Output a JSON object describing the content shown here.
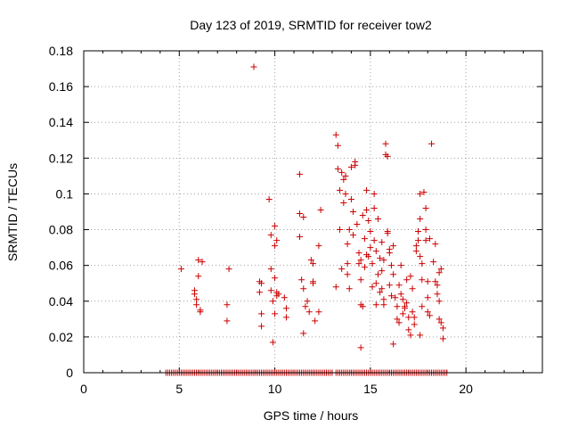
{
  "chart_data": {
    "type": "scatter",
    "title": "Day 123 of 2019, SRMTID for receiver tow2",
    "xlabel": "GPS time / hours",
    "ylabel": "SRMTID / TECUs",
    "xlim": [
      0,
      24
    ],
    "ylim": [
      0,
      0.18
    ],
    "x_ticks": [
      0,
      5,
      10,
      15,
      20
    ],
    "x_tick_labels": [
      "0",
      "5",
      "10",
      "15",
      "20"
    ],
    "y_ticks": [
      0,
      0.02,
      0.04,
      0.06,
      0.08,
      0.1,
      0.12,
      0.14,
      0.16,
      0.18
    ],
    "y_tick_labels": [
      "0",
      "0.02",
      "0.04",
      "0.06",
      "0.08",
      "0.1",
      "0.12",
      "0.14",
      "0.16",
      "0.18"
    ],
    "grid": true,
    "marker": "+",
    "marker_color": "#cc0000",
    "zero_series": {
      "y": 0,
      "x_ranges": [
        [
          4.3,
          9.9
        ],
        [
          10.0,
          13.0
        ],
        [
          13.2,
          19.0
        ]
      ],
      "step": 0.1
    },
    "series": [
      {
        "name": "SRMTID",
        "points": [
          [
            5.1,
            0.058
          ],
          [
            5.8,
            0.046
          ],
          [
            5.8,
            0.044
          ],
          [
            5.9,
            0.038
          ],
          [
            5.9,
            0.041
          ],
          [
            6.0,
            0.063
          ],
          [
            6.0,
            0.054
          ],
          [
            6.1,
            0.035
          ],
          [
            6.1,
            0.034
          ],
          [
            6.2,
            0.062
          ],
          [
            7.5,
            0.038
          ],
          [
            7.6,
            0.058
          ],
          [
            7.5,
            0.029
          ],
          [
            8.9,
            0.171
          ],
          [
            9.2,
            0.051
          ],
          [
            9.2,
            0.045
          ],
          [
            9.3,
            0.033
          ],
          [
            9.3,
            0.026
          ],
          [
            9.3,
            0.05
          ],
          [
            9.7,
            0.097
          ],
          [
            9.8,
            0.077
          ],
          [
            9.8,
            0.058
          ],
          [
            9.8,
            0.046
          ],
          [
            9.9,
            0.04
          ],
          [
            10.0,
            0.082
          ],
          [
            10.0,
            0.071
          ],
          [
            10.0,
            0.053
          ],
          [
            10.1,
            0.045
          ],
          [
            10.1,
            0.043
          ],
          [
            10.2,
            0.044
          ],
          [
            10.1,
            0.074
          ],
          [
            9.9,
            0.017
          ],
          [
            10.0,
            0.033
          ],
          [
            10.5,
            0.042
          ],
          [
            10.6,
            0.036
          ],
          [
            10.6,
            0.031
          ],
          [
            11.3,
            0.111
          ],
          [
            11.3,
            0.089
          ],
          [
            11.3,
            0.076
          ],
          [
            11.4,
            0.052
          ],
          [
            11.5,
            0.087
          ],
          [
            11.5,
            0.047
          ],
          [
            11.6,
            0.037
          ],
          [
            11.5,
            0.022
          ],
          [
            11.7,
            0.04
          ],
          [
            11.8,
            0.034
          ],
          [
            11.9,
            0.063
          ],
          [
            12.0,
            0.061
          ],
          [
            12.0,
            0.05
          ],
          [
            12.0,
            0.051
          ],
          [
            12.1,
            0.029
          ],
          [
            12.3,
            0.071
          ],
          [
            12.4,
            0.091
          ],
          [
            12.3,
            0.034
          ],
          [
            13.2,
            0.133
          ],
          [
            13.3,
            0.127
          ],
          [
            13.3,
            0.114
          ],
          [
            13.4,
            0.102
          ],
          [
            13.4,
            0.08
          ],
          [
            13.5,
            0.058
          ],
          [
            13.2,
            0.048
          ],
          [
            13.5,
            0.112
          ],
          [
            13.6,
            0.095
          ],
          [
            13.6,
            0.108
          ],
          [
            13.7,
            0.11
          ],
          [
            13.7,
            0.1
          ],
          [
            13.8,
            0.072
          ],
          [
            13.8,
            0.055
          ],
          [
            13.8,
            0.061
          ],
          [
            13.9,
            0.047
          ],
          [
            13.9,
            0.08
          ],
          [
            14.0,
            0.115
          ],
          [
            14.0,
            0.097
          ],
          [
            14.1,
            0.09
          ],
          [
            14.1,
            0.077
          ],
          [
            14.2,
            0.116
          ],
          [
            14.2,
            0.118
          ],
          [
            14.3,
            0.083
          ],
          [
            14.4,
            0.067
          ],
          [
            14.4,
            0.061
          ],
          [
            14.5,
            0.063
          ],
          [
            14.5,
            0.052
          ],
          [
            14.5,
            0.038
          ],
          [
            14.6,
            0.037
          ],
          [
            14.5,
            0.014
          ],
          [
            14.6,
            0.088
          ],
          [
            14.7,
            0.075
          ],
          [
            14.7,
            0.059
          ],
          [
            14.8,
            0.102
          ],
          [
            14.8,
            0.091
          ],
          [
            14.8,
            0.066
          ],
          [
            14.9,
            0.085
          ],
          [
            14.9,
            0.065
          ],
          [
            15.0,
            0.079
          ],
          [
            15.0,
            0.07
          ],
          [
            15.1,
            0.061
          ],
          [
            15.1,
            0.048
          ],
          [
            15.2,
            0.1
          ],
          [
            15.2,
            0.092
          ],
          [
            15.2,
            0.074
          ],
          [
            15.3,
            0.068
          ],
          [
            15.3,
            0.05
          ],
          [
            15.3,
            0.038
          ],
          [
            15.4,
            0.086
          ],
          [
            15.5,
            0.064
          ],
          [
            15.5,
            0.045
          ],
          [
            15.6,
            0.057
          ],
          [
            15.6,
            0.047
          ],
          [
            15.7,
            0.041
          ],
          [
            15.7,
            0.038
          ],
          [
            15.6,
            0.073
          ],
          [
            15.7,
            0.063
          ],
          [
            15.8,
            0.128
          ],
          [
            15.8,
            0.122
          ],
          [
            15.9,
            0.121
          ],
          [
            15.9,
            0.079
          ],
          [
            15.9,
            0.078
          ],
          [
            16.0,
            0.069
          ],
          [
            16.0,
            0.067
          ],
          [
            16.0,
            0.049
          ],
          [
            16.1,
            0.043
          ],
          [
            16.1,
            0.06
          ],
          [
            16.2,
            0.071
          ],
          [
            16.2,
            0.055
          ],
          [
            16.3,
            0.042
          ],
          [
            16.2,
            0.016
          ],
          [
            16.4,
            0.03
          ],
          [
            16.4,
            0.037
          ],
          [
            16.5,
            0.049
          ],
          [
            16.5,
            0.028
          ],
          [
            16.6,
            0.06
          ],
          [
            16.6,
            0.044
          ],
          [
            16.7,
            0.041
          ],
          [
            16.7,
            0.033
          ],
          [
            16.8,
            0.037
          ],
          [
            16.8,
            0.036
          ],
          [
            16.9,
            0.039
          ],
          [
            17.0,
            0.031
          ],
          [
            17.0,
            0.024
          ],
          [
            17.1,
            0.021
          ],
          [
            17.1,
            0.054
          ],
          [
            17.2,
            0.047
          ],
          [
            17.2,
            0.034
          ],
          [
            17.3,
            0.031
          ],
          [
            17.3,
            0.027
          ],
          [
            17.4,
            0.071
          ],
          [
            17.4,
            0.068
          ],
          [
            17.5,
            0.079
          ],
          [
            17.5,
            0.074
          ],
          [
            17.6,
            0.1
          ],
          [
            17.6,
            0.086
          ],
          [
            17.6,
            0.065
          ],
          [
            17.7,
            0.061
          ],
          [
            17.7,
            0.052
          ],
          [
            17.7,
            0.037
          ],
          [
            17.8,
            0.101
          ],
          [
            17.9,
            0.092
          ],
          [
            17.9,
            0.08
          ],
          [
            17.9,
            0.074
          ],
          [
            18.0,
            0.051
          ],
          [
            18.0,
            0.042
          ],
          [
            18.0,
            0.034
          ],
          [
            18.1,
            0.032
          ],
          [
            18.1,
            0.075
          ],
          [
            18.2,
            0.128
          ],
          [
            18.3,
            0.062
          ],
          [
            18.4,
            0.072
          ],
          [
            18.4,
            0.051
          ],
          [
            18.5,
            0.044
          ],
          [
            18.5,
            0.049
          ],
          [
            18.6,
            0.056
          ],
          [
            18.6,
            0.04
          ],
          [
            18.6,
            0.03
          ],
          [
            18.7,
            0.058
          ],
          [
            18.7,
            0.028
          ],
          [
            18.8,
            0.025
          ],
          [
            18.8,
            0.019
          ],
          [
            16.9,
            0.052
          ],
          [
            17.6,
            0.021
          ],
          [
            15.4,
            0.055
          ]
        ]
      }
    ]
  }
}
